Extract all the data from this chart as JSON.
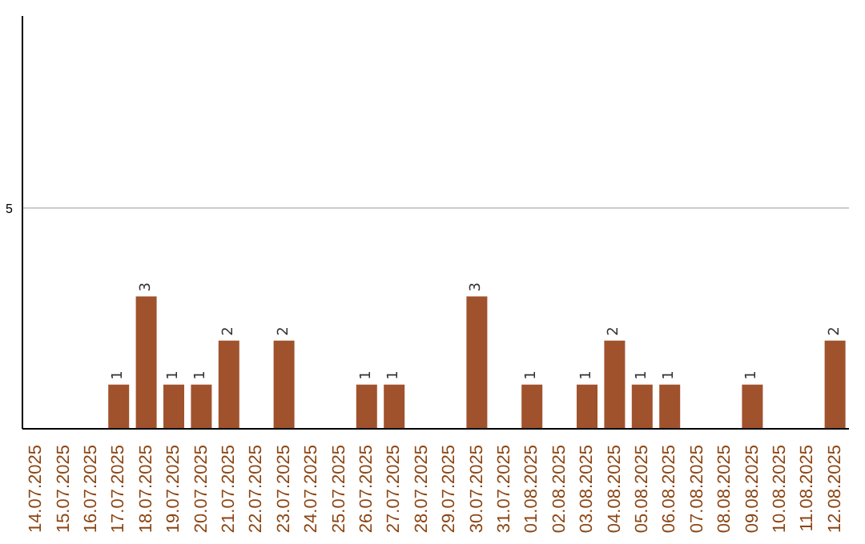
{
  "chart_data": {
    "type": "bar",
    "categories": [
      "14.07.2025",
      "15.07.2025",
      "16.07.2025",
      "17.07.2025",
      "18.07.2025",
      "19.07.2025",
      "20.07.2025",
      "21.07.2025",
      "22.07.2025",
      "23.07.2025",
      "24.07.2025",
      "25.07.2025",
      "26.07.2025",
      "27.07.2025",
      "28.07.2025",
      "29.07.2025",
      "30.07.2025",
      "31.07.2025",
      "01.08.2025",
      "02.08.2025",
      "03.08.2025",
      "04.08.2025",
      "05.08.2025",
      "06.08.2025",
      "07.08.2025",
      "08.08.2025",
      "09.08.2025",
      "10.08.2025",
      "11.08.2025",
      "12.08.2025"
    ],
    "values": [
      0,
      0,
      0,
      1,
      3,
      1,
      1,
      2,
      0,
      2,
      0,
      0,
      1,
      1,
      0,
      0,
      3,
      0,
      1,
      0,
      1,
      2,
      1,
      1,
      0,
      0,
      1,
      0,
      0,
      2
    ],
    "value_labels": [
      null,
      null,
      null,
      "1",
      "3",
      "1",
      "1",
      "2",
      null,
      "2",
      null,
      null,
      "1",
      "1",
      null,
      null,
      "3",
      null,
      "1",
      null,
      "1",
      "2",
      "1",
      "1",
      null,
      null,
      "1",
      null,
      null,
      "2"
    ],
    "color": "#a0522d",
    "ylim": [
      0,
      9.35
    ],
    "yticks": [
      5
    ],
    "grid": "y"
  }
}
